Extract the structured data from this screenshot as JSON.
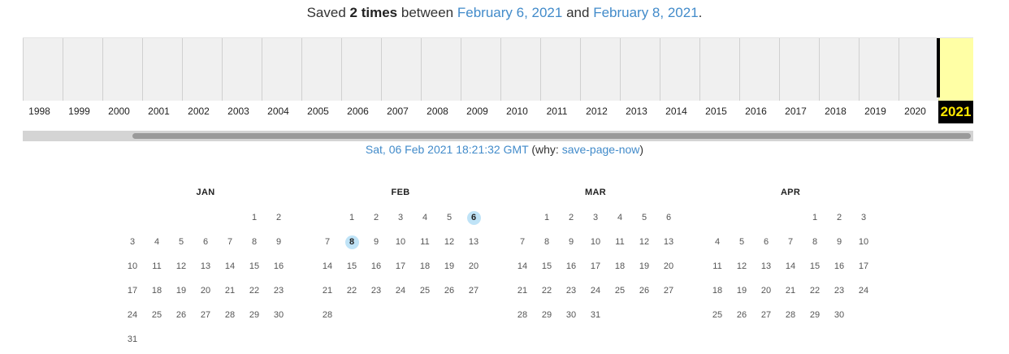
{
  "summary": {
    "prefix": "Saved",
    "count": "2 times",
    "between": "between",
    "first_date": "February 6, 2021",
    "and": "and",
    "last_date": "February 8, 2021",
    "period": "."
  },
  "timeline": {
    "years": [
      "1998",
      "1999",
      "2000",
      "2001",
      "2002",
      "2003",
      "2004",
      "2005",
      "2006",
      "2007",
      "2008",
      "2009",
      "2010",
      "2011",
      "2012",
      "2013",
      "2014",
      "2015",
      "2016",
      "2017",
      "2018",
      "2019",
      "2020",
      "2021"
    ],
    "current_year": "2021"
  },
  "capture_info": {
    "timestamp": "Sat, 06 Feb 2021 18:21:32 GMT",
    "why_open": "(why: ",
    "reason": "save-page-now",
    "why_close": ")"
  },
  "months": [
    {
      "name": "JAN",
      "start_weekday": 5,
      "days": 31,
      "captured": []
    },
    {
      "name": "FEB",
      "start_weekday": 1,
      "days": 28,
      "captured": [
        6,
        8
      ]
    },
    {
      "name": "MAR",
      "start_weekday": 1,
      "days": 31,
      "captured": []
    },
    {
      "name": "APR",
      "start_weekday": 4,
      "days": 30,
      "captured": []
    }
  ],
  "colors": {
    "link": "#428bca",
    "current_year_bg": "#ffffa5",
    "captured_day": "#bfe3f7"
  }
}
